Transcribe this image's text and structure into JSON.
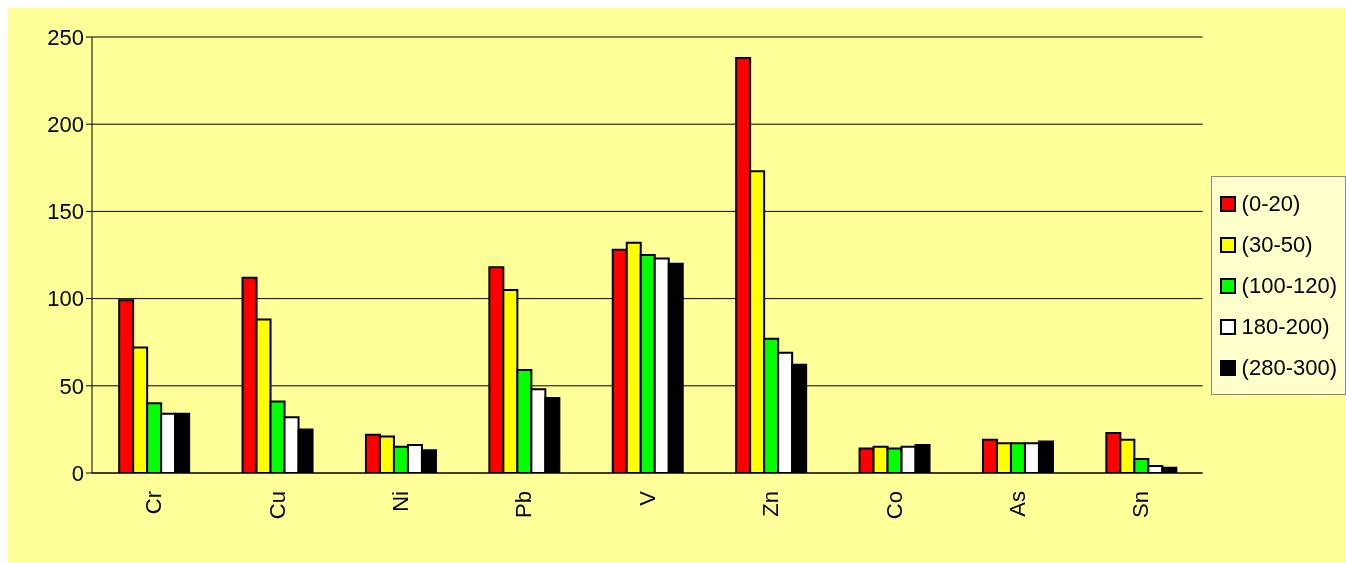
{
  "chart_data": {
    "type": "bar",
    "categories": [
      "Cr",
      "Cu",
      "Ni",
      "Pb",
      "V",
      "Zn",
      "Co",
      "As",
      "Sn"
    ],
    "series": [
      {
        "name": "(0-20)",
        "color": "#ff0000",
        "values": [
          99,
          112,
          22,
          118,
          128,
          238,
          14,
          19,
          23
        ]
      },
      {
        "name": "(30-50)",
        "color": "#ffff00",
        "values": [
          72,
          88,
          21,
          105,
          132,
          173,
          15,
          17,
          19
        ]
      },
      {
        "name": "(100-120)",
        "color": "#00ff00",
        "values": [
          40,
          41,
          15,
          59,
          125,
          77,
          14,
          17,
          8
        ]
      },
      {
        "name": "180-200)",
        "color": "#ffffff",
        "values": [
          34,
          32,
          16,
          48,
          123,
          69,
          15,
          17,
          4
        ]
      },
      {
        "name": "(280-300)",
        "color": "#000000",
        "values": [
          34,
          25,
          13,
          43,
          120,
          62,
          16,
          18,
          3
        ]
      }
    ],
    "ylim": [
      0,
      250
    ],
    "yticks": [
      0,
      50,
      100,
      150,
      200,
      250
    ],
    "grid": "y",
    "legend": "right"
  }
}
